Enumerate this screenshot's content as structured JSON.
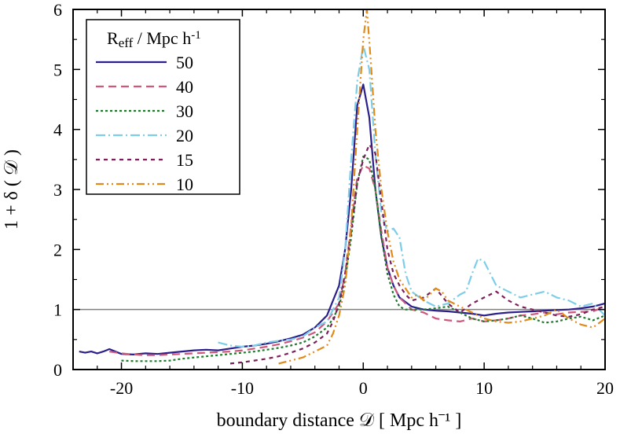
{
  "chart_data": {
    "type": "line",
    "title": "",
    "xlabel": "boundary distance  𝒟 [ Mpc h⁻¹ ]",
    "ylabel": "1 + δ ( 𝒟 )",
    "xlim": [
      -24,
      20
    ],
    "ylim": [
      0,
      6
    ],
    "xticks": [
      -20,
      -10,
      0,
      10,
      20
    ],
    "yticks": [
      0,
      1,
      2,
      3,
      4,
      5,
      6
    ],
    "xtick_labels": [
      "-20",
      "-10",
      "0",
      "10",
      "20"
    ],
    "ytick_labels": [
      "0",
      "1",
      "2",
      "3",
      "4",
      "5",
      "6"
    ],
    "reference_line": {
      "y": 1,
      "color": "#808080"
    },
    "legend": {
      "title": "R_eff / Mpc h⁻¹",
      "title_main": "R",
      "title_sub": "eff",
      "title_rest": " / Mpc h",
      "title_sup": "-1",
      "placement": "top-left"
    },
    "grid": false,
    "series": [
      {
        "name": "50",
        "color": "#2b1f8c",
        "dash": "solid",
        "x": [
          -23.5,
          -23,
          -22.5,
          -22,
          -21.5,
          -21,
          -20,
          -19,
          -18,
          -17,
          -16,
          -15,
          -14,
          -13,
          -12,
          -11,
          -10,
          -9,
          -8,
          -7,
          -6,
          -5,
          -4,
          -3,
          -2,
          -1.5,
          -1,
          -0.5,
          0,
          0.5,
          1,
          1.5,
          2,
          2.5,
          3,
          4,
          5,
          6,
          7,
          8,
          9,
          10,
          11,
          12,
          13,
          14,
          15,
          16,
          17,
          18,
          19,
          20
        ],
        "y": [
          0.3,
          0.28,
          0.3,
          0.27,
          0.3,
          0.34,
          0.26,
          0.25,
          0.27,
          0.26,
          0.28,
          0.3,
          0.32,
          0.33,
          0.32,
          0.35,
          0.38,
          0.4,
          0.43,
          0.47,
          0.52,
          0.58,
          0.7,
          0.9,
          1.4,
          2.0,
          3.0,
          4.4,
          4.75,
          4.2,
          3.0,
          2.2,
          1.7,
          1.4,
          1.2,
          1.05,
          1.0,
          0.98,
          0.97,
          0.95,
          0.93,
          0.9,
          0.93,
          0.95,
          0.96,
          0.97,
          0.98,
          0.99,
          1.0,
          1.02,
          1.05,
          1.1
        ]
      },
      {
        "name": "40",
        "color": "#d0567b",
        "dash": "10,6",
        "x": [
          -21,
          -20,
          -19,
          -18,
          -17,
          -16,
          -15,
          -14,
          -13,
          -12,
          -11,
          -10,
          -9,
          -8,
          -7,
          -6,
          -5,
          -4,
          -3,
          -2,
          -1.5,
          -1,
          -0.5,
          0,
          0.5,
          1,
          1.5,
          2,
          2.5,
          3,
          3.5,
          4,
          5,
          6,
          7,
          8,
          9,
          10,
          11,
          12,
          13,
          14,
          15,
          16,
          17,
          18,
          19,
          20
        ],
        "y": [
          0.3,
          0.27,
          0.25,
          0.24,
          0.24,
          0.25,
          0.26,
          0.27,
          0.28,
          0.29,
          0.3,
          0.32,
          0.35,
          0.38,
          0.42,
          0.47,
          0.53,
          0.62,
          0.8,
          1.1,
          1.6,
          2.4,
          3.2,
          3.4,
          3.35,
          3.0,
          2.3,
          1.7,
          1.4,
          1.2,
          1.1,
          1.0,
          0.95,
          0.85,
          0.82,
          0.8,
          0.85,
          0.8,
          0.82,
          0.85,
          0.9,
          0.92,
          0.95,
          0.92,
          0.95,
          0.96,
          0.97,
          1.05
        ]
      },
      {
        "name": "30",
        "color": "#1f7a2c",
        "dash": "3,3",
        "x": [
          -20,
          -19,
          -18,
          -17,
          -16,
          -15,
          -14,
          -13,
          -12,
          -11,
          -10,
          -9,
          -8,
          -7,
          -6,
          -5,
          -4,
          -3,
          -2.5,
          -2,
          -1.5,
          -1,
          -0.5,
          0,
          0.5,
          1,
          1.5,
          2,
          2.5,
          3,
          3.5,
          4,
          5,
          6,
          7,
          8,
          9,
          10,
          11,
          12,
          13,
          14,
          15,
          16,
          17,
          18,
          19,
          20
        ],
        "y": [
          0.15,
          0.14,
          0.14,
          0.14,
          0.15,
          0.18,
          0.2,
          0.22,
          0.24,
          0.26,
          0.28,
          0.3,
          0.33,
          0.36,
          0.4,
          0.45,
          0.55,
          0.7,
          0.85,
          1.05,
          1.5,
          2.2,
          3.1,
          3.55,
          3.5,
          3.0,
          2.2,
          1.6,
          1.25,
          1.05,
          1.0,
          1.0,
          1.0,
          1.02,
          1.05,
          0.95,
          0.85,
          0.8,
          0.82,
          0.85,
          0.9,
          0.85,
          0.78,
          0.8,
          0.85,
          0.88,
          0.82,
          0.9
        ]
      },
      {
        "name": "20",
        "color": "#7ecde8",
        "dash": "12,4,2,4",
        "x": [
          -12,
          -11,
          -10,
          -9,
          -8,
          -7,
          -6,
          -5,
          -4,
          -3,
          -2,
          -1.5,
          -1,
          -0.5,
          0,
          0.5,
          1,
          1.5,
          2,
          2.5,
          3,
          3.5,
          4,
          5,
          6,
          7,
          8,
          8.5,
          9,
          9.5,
          10,
          11,
          12,
          13,
          14,
          15,
          16,
          17,
          18,
          19,
          20
        ],
        "y": [
          0.45,
          0.4,
          0.38,
          0.4,
          0.45,
          0.48,
          0.5,
          0.55,
          0.7,
          0.8,
          1.2,
          2.0,
          3.5,
          4.8,
          5.4,
          5.0,
          3.6,
          2.6,
          2.3,
          2.35,
          2.2,
          1.6,
          1.3,
          1.15,
          1.05,
          1.1,
          1.25,
          1.3,
          1.6,
          1.85,
          1.8,
          1.4,
          1.3,
          1.2,
          1.25,
          1.3,
          1.2,
          1.15,
          1.05,
          1.1,
          0.9
        ]
      },
      {
        "name": "15",
        "color": "#7a1f5a",
        "dash": "5,5",
        "x": [
          -11,
          -10,
          -9,
          -8,
          -7,
          -6,
          -5,
          -4,
          -3,
          -2.5,
          -2,
          -1.5,
          -1,
          -0.5,
          0,
          0.5,
          1,
          1.5,
          2,
          2.5,
          3,
          3.5,
          4,
          5,
          6,
          7,
          8,
          9,
          10,
          11,
          12,
          13,
          14,
          15,
          16,
          17,
          18,
          19,
          20
        ],
        "y": [
          0.1,
          0.12,
          0.15,
          0.18,
          0.22,
          0.28,
          0.35,
          0.45,
          0.6,
          0.8,
          1.1,
          1.6,
          2.3,
          3.1,
          3.5,
          3.75,
          3.6,
          2.8,
          2.0,
          1.6,
          1.4,
          1.25,
          1.15,
          1.2,
          1.35,
          1.1,
          0.95,
          1.1,
          1.2,
          1.3,
          1.15,
          1.05,
          1.0,
          0.95,
          0.9,
          0.88,
          0.92,
          1.0,
          1.05
        ]
      },
      {
        "name": "10",
        "color": "#e08a1a",
        "dash": "10,4,2,4,2,4",
        "x": [
          -7,
          -6,
          -5,
          -4,
          -3,
          -2.5,
          -2,
          -1.5,
          -1,
          -0.5,
          0,
          0.3,
          0.6,
          1,
          1.5,
          2,
          2.5,
          3,
          3.5,
          4,
          4.5,
          5,
          5.5,
          6,
          6.5,
          7,
          8,
          9,
          10,
          11,
          12,
          13,
          14,
          15,
          16,
          17,
          18,
          19,
          20
        ],
        "y": [
          0.1,
          0.15,
          0.2,
          0.3,
          0.4,
          0.6,
          0.9,
          1.4,
          2.4,
          4.0,
          5.5,
          6.0,
          5.2,
          4.0,
          3.0,
          2.3,
          1.8,
          1.5,
          1.35,
          1.2,
          1.25,
          1.15,
          1.25,
          1.35,
          1.3,
          1.15,
          1.05,
          0.95,
          0.85,
          0.8,
          0.78,
          0.8,
          0.85,
          0.9,
          1.0,
          0.85,
          0.75,
          0.7,
          0.85
        ]
      }
    ]
  }
}
